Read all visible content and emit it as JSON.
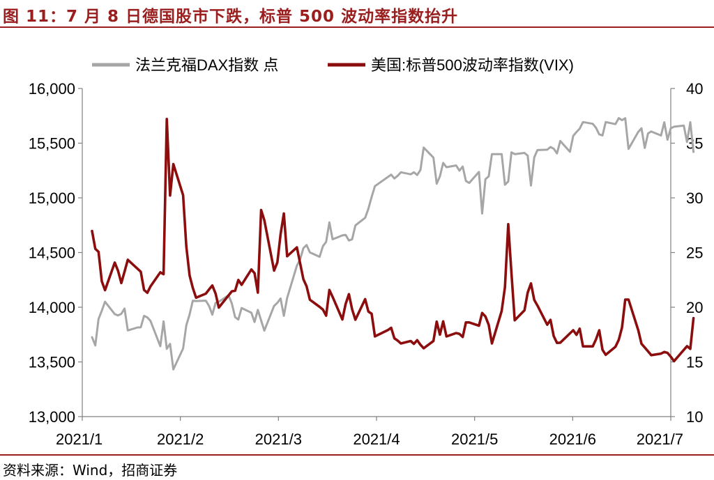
{
  "figure": {
    "title": "图 11：7 月 8 日德国股市下跌，标普 500 波动率指数抬升",
    "source": "资料来源：Wind，招商证券"
  },
  "colors": {
    "dax": "#a6a6a6",
    "vix": "#8b0d0d",
    "accent": "#9a1e1e",
    "axis": "#808080"
  },
  "chart_data": {
    "type": "line",
    "legend": {
      "placement": "top"
    },
    "grid": false,
    "x_tick_labels": [
      "2021/1",
      "2021/2",
      "2021/3",
      "2021/4",
      "2021/5",
      "2021/6",
      "2021/7"
    ],
    "y_left": {
      "lim": [
        13000,
        16000
      ],
      "ticks": [
        "13,000",
        "13,500",
        "14,000",
        "14,500",
        "15,000",
        "15,500",
        "16,000"
      ]
    },
    "y_right": {
      "lim": [
        10,
        40
      ],
      "ticks": [
        "10",
        "15",
        "20",
        "25",
        "30",
        "35",
        "40"
      ]
    },
    "series": [
      {
        "name": "法兰克福DAX指数 点",
        "axis": "left",
        "x": [
          "2021-01-04",
          "2021-01-05",
          "2021-01-06",
          "2021-01-07",
          "2021-01-08",
          "2021-01-11",
          "2021-01-12",
          "2021-01-13",
          "2021-01-14",
          "2021-01-15",
          "2021-01-18",
          "2021-01-19",
          "2021-01-20",
          "2021-01-21",
          "2021-01-22",
          "2021-01-25",
          "2021-01-26",
          "2021-01-27",
          "2021-01-28",
          "2021-01-29",
          "2021-02-01",
          "2021-02-02",
          "2021-02-03",
          "2021-02-04",
          "2021-02-05",
          "2021-02-08",
          "2021-02-09",
          "2021-02-10",
          "2021-02-11",
          "2021-02-12",
          "2021-02-15",
          "2021-02-16",
          "2021-02-17",
          "2021-02-18",
          "2021-02-19",
          "2021-02-22",
          "2021-02-23",
          "2021-02-24",
          "2021-02-25",
          "2021-02-26",
          "2021-03-01",
          "2021-03-02",
          "2021-03-03",
          "2021-03-04",
          "2021-03-05",
          "2021-03-08",
          "2021-03-09",
          "2021-03-10",
          "2021-03-11",
          "2021-03-12",
          "2021-03-15",
          "2021-03-16",
          "2021-03-17",
          "2021-03-18",
          "2021-03-19",
          "2021-03-22",
          "2021-03-23",
          "2021-03-24",
          "2021-03-25",
          "2021-03-26",
          "2021-03-29",
          "2021-03-30",
          "2021-03-31",
          "2021-04-01",
          "2021-04-06",
          "2021-04-07",
          "2021-04-08",
          "2021-04-09",
          "2021-04-12",
          "2021-04-13",
          "2021-04-14",
          "2021-04-15",
          "2021-04-16",
          "2021-04-19",
          "2021-04-20",
          "2021-04-21",
          "2021-04-22",
          "2021-04-23",
          "2021-04-26",
          "2021-04-27",
          "2021-04-28",
          "2021-04-29",
          "2021-04-30",
          "2021-05-03",
          "2021-05-04",
          "2021-05-05",
          "2021-05-06",
          "2021-05-07",
          "2021-05-10",
          "2021-05-11",
          "2021-05-12",
          "2021-05-13",
          "2021-05-14",
          "2021-05-17",
          "2021-05-18",
          "2021-05-19",
          "2021-05-20",
          "2021-05-21",
          "2021-05-24",
          "2021-05-25",
          "2021-05-26",
          "2021-05-27",
          "2021-05-28",
          "2021-05-31",
          "2021-06-01",
          "2021-06-02",
          "2021-06-03",
          "2021-06-04",
          "2021-06-07",
          "2021-06-08",
          "2021-06-09",
          "2021-06-10",
          "2021-06-11",
          "2021-06-14",
          "2021-06-15",
          "2021-06-16",
          "2021-06-17",
          "2021-06-18",
          "2021-06-21",
          "2021-06-22",
          "2021-06-23",
          "2021-06-24",
          "2021-06-25",
          "2021-06-28",
          "2021-06-29",
          "2021-06-30",
          "2021-07-01",
          "2021-07-02",
          "2021-07-05",
          "2021-07-06",
          "2021-07-07",
          "2021-07-08"
        ],
        "values": [
          13726,
          13651,
          13892,
          13968,
          14050,
          13937,
          13925,
          13940,
          13988,
          13788,
          13815,
          13816,
          13921,
          13907,
          13874,
          13643,
          13871,
          13620,
          13665,
          13432,
          13623,
          13835,
          13933,
          14060,
          14057,
          14060,
          14011,
          13932,
          14040,
          14050,
          14109,
          14034,
          13909,
          13887,
          13993,
          13950,
          13865,
          13976,
          13879,
          13786,
          14012,
          14040,
          14080,
          13921,
          14085,
          14380,
          14437,
          14540,
          14569,
          14502,
          14461,
          14558,
          14597,
          14776,
          14621,
          14657,
          14662,
          14610,
          14621,
          14748,
          14818,
          14900,
          15008,
          15107,
          15212,
          15177,
          15202,
          15234,
          15215,
          15234,
          15209,
          15255,
          15460,
          15368,
          15129,
          15196,
          15320,
          15280,
          15296,
          15249,
          15286,
          15155,
          15136,
          15237,
          14857,
          15171,
          15197,
          15400,
          15400,
          15120,
          15150,
          15416,
          15400,
          15411,
          15386,
          15113,
          15370,
          15437,
          15440,
          15465,
          15450,
          15406,
          15520,
          15421,
          15567,
          15602,
          15633,
          15693,
          15677,
          15640,
          15581,
          15571,
          15693,
          15674,
          15729,
          15710,
          15728,
          15448,
          15603,
          15636,
          15456,
          15589,
          15607,
          15570,
          15691,
          15531,
          15636,
          15650,
          15661,
          15511,
          15692,
          15420
        ]
      },
      {
        "name": "美国:标普500波动率指数(VIX)",
        "axis": "right",
        "x": [
          "2021-01-04",
          "2021-01-05",
          "2021-01-06",
          "2021-01-07",
          "2021-01-08",
          "2021-01-11",
          "2021-01-12",
          "2021-01-13",
          "2021-01-14",
          "2021-01-15",
          "2021-01-19",
          "2021-01-20",
          "2021-01-21",
          "2021-01-22",
          "2021-01-25",
          "2021-01-26",
          "2021-01-27",
          "2021-01-28",
          "2021-01-29",
          "2021-02-01",
          "2021-02-02",
          "2021-02-03",
          "2021-02-04",
          "2021-02-05",
          "2021-02-08",
          "2021-02-09",
          "2021-02-10",
          "2021-02-11",
          "2021-02-12",
          "2021-02-16",
          "2021-02-17",
          "2021-02-18",
          "2021-02-19",
          "2021-02-22",
          "2021-02-23",
          "2021-02-24",
          "2021-02-25",
          "2021-02-26",
          "2021-03-01",
          "2021-03-02",
          "2021-03-03",
          "2021-03-04",
          "2021-03-05",
          "2021-03-08",
          "2021-03-09",
          "2021-03-10",
          "2021-03-11",
          "2021-03-12",
          "2021-03-15",
          "2021-03-16",
          "2021-03-17",
          "2021-03-18",
          "2021-03-19",
          "2021-03-22",
          "2021-03-23",
          "2021-03-24",
          "2021-03-25",
          "2021-03-26",
          "2021-03-29",
          "2021-03-30",
          "2021-03-31",
          "2021-04-01",
          "2021-04-05",
          "2021-04-06",
          "2021-04-07",
          "2021-04-08",
          "2021-04-09",
          "2021-04-12",
          "2021-04-13",
          "2021-04-14",
          "2021-04-15",
          "2021-04-16",
          "2021-04-19",
          "2021-04-20",
          "2021-04-21",
          "2021-04-22",
          "2021-04-23",
          "2021-04-26",
          "2021-04-27",
          "2021-04-28",
          "2021-04-29",
          "2021-04-30",
          "2021-05-03",
          "2021-05-04",
          "2021-05-05",
          "2021-05-06",
          "2021-05-07",
          "2021-05-10",
          "2021-05-11",
          "2021-05-12",
          "2021-05-13",
          "2021-05-14",
          "2021-05-17",
          "2021-05-18",
          "2021-05-19",
          "2021-05-20",
          "2021-05-21",
          "2021-05-24",
          "2021-05-25",
          "2021-05-26",
          "2021-05-27",
          "2021-05-28",
          "2021-06-01",
          "2021-06-02",
          "2021-06-03",
          "2021-06-04",
          "2021-06-07",
          "2021-06-08",
          "2021-06-09",
          "2021-06-10",
          "2021-06-11",
          "2021-06-14",
          "2021-06-15",
          "2021-06-16",
          "2021-06-17",
          "2021-06-18",
          "2021-06-21",
          "2021-06-22",
          "2021-06-23",
          "2021-06-24",
          "2021-06-25",
          "2021-06-28",
          "2021-06-29",
          "2021-06-30",
          "2021-07-01",
          "2021-07-02",
          "2021-07-06",
          "2021-07-07",
          "2021-07-08"
        ],
        "values": [
          26.97,
          25.34,
          25.07,
          22.37,
          21.56,
          24.08,
          23.33,
          22.21,
          23.25,
          24.34,
          23.24,
          21.58,
          21.32,
          21.91,
          23.19,
          23.02,
          37.21,
          30.21,
          33.09,
          30.24,
          25.56,
          22.91,
          21.77,
          20.87,
          21.24,
          21.63,
          21.99,
          21.25,
          19.97,
          21.46,
          21.5,
          22.49,
          22.05,
          23.45,
          23.11,
          21.34,
          28.89,
          27.95,
          23.35,
          24.1,
          26.67,
          28.57,
          24.66,
          25.47,
          24.03,
          22.56,
          21.91,
          20.69,
          20.03,
          19.79,
          19.23,
          21.58,
          20.95,
          18.88,
          20.3,
          21.2,
          19.81,
          18.86,
          20.74,
          19.61,
          19.4,
          17.33,
          17.91,
          18.12,
          17.16,
          16.95,
          16.69,
          16.91,
          16.65,
          16.99,
          16.57,
          16.25,
          16.91,
          18.68,
          17.5,
          18.71,
          17.33,
          17.64,
          17.56,
          17.28,
          18.61,
          18.61,
          18.31,
          19.48,
          19.15,
          18.39,
          16.69,
          19.66,
          21.84,
          27.59,
          23.13,
          18.81,
          19.72,
          21.34,
          22.18,
          20.67,
          20.15,
          18.4,
          18.84,
          17.36,
          16.74,
          16.76,
          17.9,
          17.48,
          18.04,
          16.42,
          16.42,
          17.07,
          17.89,
          16.1,
          15.65,
          16.39,
          17.02,
          18.15,
          20.7,
          20.7,
          17.89,
          16.66,
          16.32,
          15.97,
          15.62,
          15.76,
          15.91,
          15.83,
          15.48,
          15.07,
          16.44,
          16.2,
          19.0
        ]
      }
    ]
  }
}
